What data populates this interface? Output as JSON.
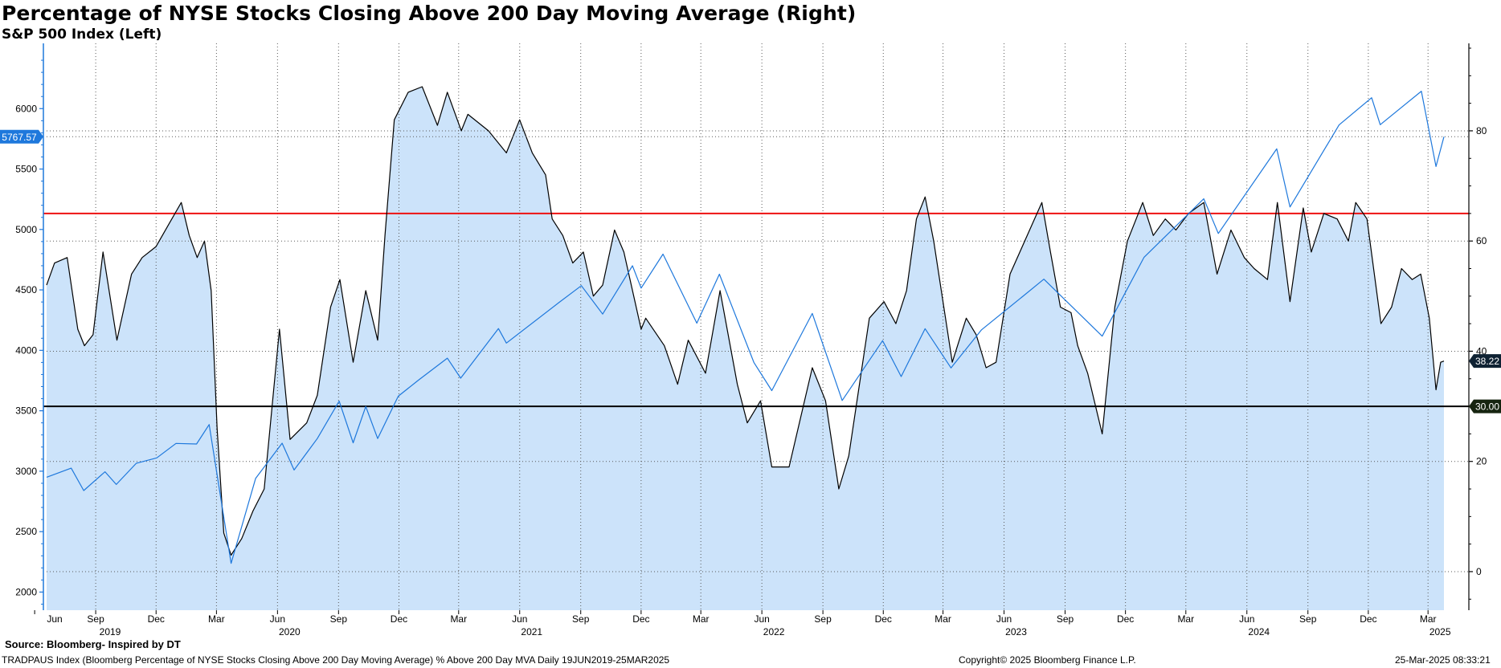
{
  "page": {
    "title": "Percentage of NYSE Stocks Closing Above 200 Day Moving Average (Right)",
    "subtitle": "S&P 500 Index (Left)",
    "source": "Source: Bloomberg- Inspired by DT",
    "footer_description": "TRADPAUS Index (Bloomberg Percentage of NYSE Stocks Closing Above 200 Day Moving Average) % Above 200 Day MVA  Daily 19JUN2019-25MAR2025",
    "footer_copyright": "Copyright© 2025 Bloomberg Finance L.P.",
    "footer_timestamp": "25-Mar-2025 08:33:21"
  },
  "colors": {
    "area_fill": "#cce3fa",
    "pct_line": "#000000",
    "spx_line": "#1e78dc",
    "red_line": "#ee1111",
    "black_line": "#000000",
    "left_axis": "#1e78dc",
    "last_spx_tag": "#1e78dc",
    "last_pct_tag": "#0f2233",
    "thirty_tag": "#162410"
  },
  "chart_data": {
    "type": "line",
    "title": "Percentage of NYSE Stocks Closing Above 200 Day Moving Average (Right)",
    "subtitle": "S&P 500 Index (Left)",
    "x_range": [
      "2019-06-19",
      "2025-03-25"
    ],
    "y_left": {
      "label": "S&P 500 Index (Left)",
      "range": [
        1850,
        6500
      ],
      "ticks": [
        2000,
        2500,
        3000,
        3500,
        4000,
        4500,
        5000,
        5500,
        6000
      ]
    },
    "y_right": {
      "label": "Percentage (Right)",
      "range": [
        -7,
        95
      ],
      "ticks": [
        0,
        20,
        40,
        60,
        80
      ]
    },
    "x_ticks": [
      {
        "date": "2019-06-01",
        "label": "Jun",
        "year": "2019"
      },
      {
        "date": "2019-09-01",
        "label": "Sep"
      },
      {
        "date": "2019-12-01",
        "label": "Dec"
      },
      {
        "date": "2020-03-01",
        "label": "Mar"
      },
      {
        "date": "2020-06-01",
        "label": "Jun",
        "year": "2020"
      },
      {
        "date": "2020-09-01",
        "label": "Sep"
      },
      {
        "date": "2020-12-01",
        "label": "Dec"
      },
      {
        "date": "2021-03-01",
        "label": "Mar"
      },
      {
        "date": "2021-06-01",
        "label": "Jun",
        "year": "2021"
      },
      {
        "date": "2021-09-01",
        "label": "Sep"
      },
      {
        "date": "2021-12-01",
        "label": "Dec"
      },
      {
        "date": "2022-03-01",
        "label": "Mar"
      },
      {
        "date": "2022-06-01",
        "label": "Jun",
        "year": "2022"
      },
      {
        "date": "2022-09-01",
        "label": "Sep"
      },
      {
        "date": "2022-12-01",
        "label": "Dec"
      },
      {
        "date": "2023-03-01",
        "label": "Mar"
      },
      {
        "date": "2023-06-01",
        "label": "Jun",
        "year": "2023"
      },
      {
        "date": "2023-09-01",
        "label": "Sep"
      },
      {
        "date": "2023-12-01",
        "label": "Dec"
      },
      {
        "date": "2024-03-01",
        "label": "Mar"
      },
      {
        "date": "2024-06-01",
        "label": "Jun",
        "year": "2024"
      },
      {
        "date": "2024-09-01",
        "label": "Sep"
      },
      {
        "date": "2024-12-01",
        "label": "Dec"
      },
      {
        "date": "2025-03-01",
        "label": "Mar",
        "year": "2025"
      }
    ],
    "grid": "dotted",
    "reference_lines": [
      {
        "axis": "right",
        "value": 65,
        "color": "red"
      },
      {
        "axis": "right",
        "value": 30,
        "color": "black",
        "tag": "30.00"
      }
    ],
    "last_values": {
      "spx": "5767.57",
      "pct": "38.22"
    },
    "series": [
      {
        "name": "Percentage of NYSE Stocks Closing Above 200 Day Moving Average",
        "axis": "right",
        "style": "area-line",
        "points": [
          [
            "2019-06-19",
            52
          ],
          [
            "2019-07-01",
            56
          ],
          [
            "2019-07-20",
            57
          ],
          [
            "2019-08-05",
            44
          ],
          [
            "2019-08-15",
            41
          ],
          [
            "2019-08-28",
            43
          ],
          [
            "2019-09-12",
            58
          ],
          [
            "2019-10-03",
            42
          ],
          [
            "2019-10-25",
            54
          ],
          [
            "2019-11-10",
            57
          ],
          [
            "2019-12-01",
            59
          ],
          [
            "2019-12-20",
            63
          ],
          [
            "2020-01-08",
            67
          ],
          [
            "2020-01-20",
            61
          ],
          [
            "2020-02-01",
            57
          ],
          [
            "2020-02-12",
            60
          ],
          [
            "2020-02-22",
            51
          ],
          [
            "2020-03-02",
            26
          ],
          [
            "2020-03-12",
            7
          ],
          [
            "2020-03-23",
            3
          ],
          [
            "2020-04-08",
            6
          ],
          [
            "2020-04-25",
            11
          ],
          [
            "2020-05-12",
            15
          ],
          [
            "2020-06-04",
            44
          ],
          [
            "2020-06-20",
            24
          ],
          [
            "2020-07-15",
            27
          ],
          [
            "2020-07-31",
            32
          ],
          [
            "2020-08-20",
            48
          ],
          [
            "2020-09-03",
            53
          ],
          [
            "2020-09-23",
            38
          ],
          [
            "2020-10-12",
            51
          ],
          [
            "2020-10-30",
            42
          ],
          [
            "2020-11-10",
            61
          ],
          [
            "2020-11-24",
            82
          ],
          [
            "2020-12-15",
            87
          ],
          [
            "2021-01-05",
            88
          ],
          [
            "2021-01-28",
            81
          ],
          [
            "2021-02-12",
            87
          ],
          [
            "2021-03-05",
            80
          ],
          [
            "2021-03-15",
            83
          ],
          [
            "2021-04-15",
            80
          ],
          [
            "2021-05-12",
            76
          ],
          [
            "2021-06-01",
            82
          ],
          [
            "2021-06-20",
            76
          ],
          [
            "2021-07-10",
            72
          ],
          [
            "2021-07-20",
            64
          ],
          [
            "2021-08-05",
            61
          ],
          [
            "2021-08-20",
            56
          ],
          [
            "2021-09-05",
            58
          ],
          [
            "2021-09-20",
            50
          ],
          [
            "2021-10-04",
            52
          ],
          [
            "2021-10-22",
            62
          ],
          [
            "2021-11-05",
            58
          ],
          [
            "2021-12-01",
            44
          ],
          [
            "2021-12-08",
            46
          ],
          [
            "2022-01-05",
            41
          ],
          [
            "2022-01-25",
            34
          ],
          [
            "2022-02-10",
            42
          ],
          [
            "2022-03-08",
            36
          ],
          [
            "2022-03-30",
            51
          ],
          [
            "2022-04-25",
            34
          ],
          [
            "2022-05-10",
            27
          ],
          [
            "2022-05-30",
            31
          ],
          [
            "2022-06-16",
            19
          ],
          [
            "2022-07-12",
            19
          ],
          [
            "2022-08-16",
            37
          ],
          [
            "2022-09-05",
            31
          ],
          [
            "2022-09-25",
            15
          ],
          [
            "2022-10-10",
            21
          ],
          [
            "2022-11-10",
            46
          ],
          [
            "2022-12-02",
            49
          ],
          [
            "2022-12-20",
            45
          ],
          [
            "2023-01-05",
            51
          ],
          [
            "2023-01-20",
            64
          ],
          [
            "2023-02-02",
            68
          ],
          [
            "2023-02-15",
            60
          ],
          [
            "2023-03-15",
            38
          ],
          [
            "2023-04-05",
            46
          ],
          [
            "2023-04-20",
            43
          ],
          [
            "2023-05-05",
            37
          ],
          [
            "2023-05-20",
            38
          ],
          [
            "2023-06-10",
            54
          ],
          [
            "2023-07-28",
            67
          ],
          [
            "2023-08-10",
            58
          ],
          [
            "2023-08-25",
            48
          ],
          [
            "2023-09-10",
            47
          ],
          [
            "2023-09-20",
            41
          ],
          [
            "2023-10-05",
            36
          ],
          [
            "2023-10-27",
            25
          ],
          [
            "2023-11-15",
            48
          ],
          [
            "2023-12-04",
            60
          ],
          [
            "2023-12-27",
            67
          ],
          [
            "2024-01-12",
            61
          ],
          [
            "2024-01-30",
            64
          ],
          [
            "2024-02-15",
            62
          ],
          [
            "2024-03-05",
            65
          ],
          [
            "2024-03-28",
            67
          ],
          [
            "2024-04-17",
            54
          ],
          [
            "2024-05-08",
            62
          ],
          [
            "2024-05-28",
            57
          ],
          [
            "2024-06-12",
            55
          ],
          [
            "2024-07-02",
            53
          ],
          [
            "2024-07-17",
            67
          ],
          [
            "2024-08-05",
            49
          ],
          [
            "2024-08-25",
            66
          ],
          [
            "2024-09-06",
            58
          ],
          [
            "2024-09-25",
            65
          ],
          [
            "2024-10-15",
            64
          ],
          [
            "2024-11-01",
            60
          ],
          [
            "2024-11-12",
            67
          ],
          [
            "2024-11-29",
            64
          ],
          [
            "2024-12-20",
            45
          ],
          [
            "2025-01-05",
            48
          ],
          [
            "2025-01-20",
            55
          ],
          [
            "2025-02-05",
            53
          ],
          [
            "2025-02-18",
            54
          ],
          [
            "2025-03-03",
            46
          ],
          [
            "2025-03-13",
            33
          ],
          [
            "2025-03-20",
            38
          ],
          [
            "2025-03-25",
            38.22
          ]
        ]
      },
      {
        "name": "S&P 500 Index",
        "axis": "left",
        "style": "line",
        "points": [
          [
            "2019-06-19",
            2950
          ],
          [
            "2019-07-26",
            3025
          ],
          [
            "2019-08-14",
            2840
          ],
          [
            "2019-09-15",
            2995
          ],
          [
            "2019-10-02",
            2890
          ],
          [
            "2019-11-01",
            3065
          ],
          [
            "2019-12-02",
            3110
          ],
          [
            "2019-12-31",
            3230
          ],
          [
            "2020-01-31",
            3225
          ],
          [
            "2020-02-19",
            3386
          ],
          [
            "2020-03-23",
            2237
          ],
          [
            "2020-04-29",
            2940
          ],
          [
            "2020-06-08",
            3232
          ],
          [
            "2020-06-26",
            3010
          ],
          [
            "2020-07-31",
            3270
          ],
          [
            "2020-09-02",
            3580
          ],
          [
            "2020-09-23",
            3235
          ],
          [
            "2020-10-12",
            3535
          ],
          [
            "2020-10-30",
            3270
          ],
          [
            "2020-11-30",
            3620
          ],
          [
            "2020-12-31",
            3756
          ],
          [
            "2021-02-12",
            3935
          ],
          [
            "2021-03-04",
            3770
          ],
          [
            "2021-04-30",
            4180
          ],
          [
            "2021-05-12",
            4060
          ],
          [
            "2021-07-30",
            4395
          ],
          [
            "2021-09-02",
            4535
          ],
          [
            "2021-10-04",
            4300
          ],
          [
            "2021-11-18",
            4700
          ],
          [
            "2021-12-01",
            4515
          ],
          [
            "2022-01-03",
            4796
          ],
          [
            "2022-02-23",
            4225
          ],
          [
            "2022-03-29",
            4630
          ],
          [
            "2022-05-20",
            3900
          ],
          [
            "2022-06-16",
            3667
          ],
          [
            "2022-08-16",
            4305
          ],
          [
            "2022-09-30",
            3585
          ],
          [
            "2022-11-30",
            4080
          ],
          [
            "2022-12-28",
            3783
          ],
          [
            "2023-02-02",
            4179
          ],
          [
            "2023-03-13",
            3855
          ],
          [
            "2023-04-28",
            4170
          ],
          [
            "2023-06-30",
            4450
          ],
          [
            "2023-07-31",
            4589
          ],
          [
            "2023-10-27",
            4117
          ],
          [
            "2023-12-29",
            4770
          ],
          [
            "2024-03-28",
            5254
          ],
          [
            "2024-04-19",
            4967
          ],
          [
            "2024-07-16",
            5667
          ],
          [
            "2024-08-05",
            5186
          ],
          [
            "2024-10-18",
            5865
          ],
          [
            "2024-12-06",
            6090
          ],
          [
            "2024-12-19",
            5867
          ],
          [
            "2025-02-19",
            6144
          ],
          [
            "2025-03-13",
            5521
          ],
          [
            "2025-03-25",
            5767.57
          ]
        ]
      }
    ]
  }
}
